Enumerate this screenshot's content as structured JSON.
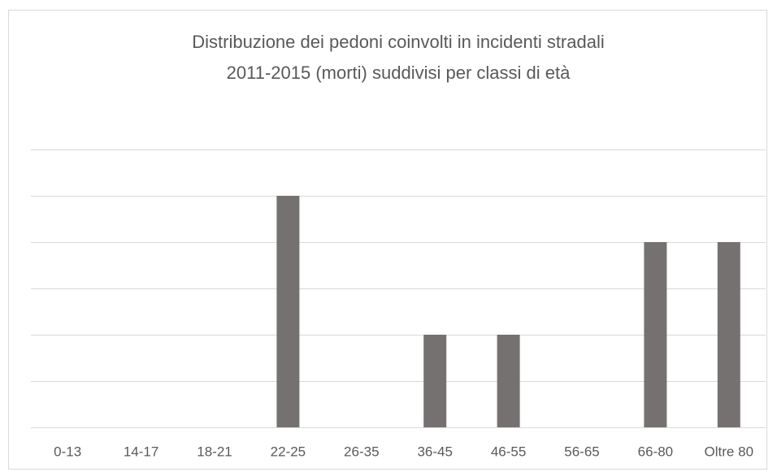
{
  "chart_data": {
    "type": "bar",
    "title": [
      "Distribuzione dei pedoni coinvolti in incidenti stradali",
      "2011-2015 (morti) suddivisi per classi di età"
    ],
    "categories": [
      "0-13",
      "14-17",
      "18-21",
      "22-25",
      "26-35",
      "36-45",
      "46-55",
      "56-65",
      "66-80",
      "Oltre 80"
    ],
    "values": [
      0,
      0,
      0,
      5,
      0,
      2,
      2,
      0,
      4,
      4
    ],
    "color": "#767171",
    "ylim": [
      0,
      6
    ],
    "yticks": [
      0,
      1,
      2,
      3,
      4,
      5,
      6
    ],
    "grid": true
  }
}
